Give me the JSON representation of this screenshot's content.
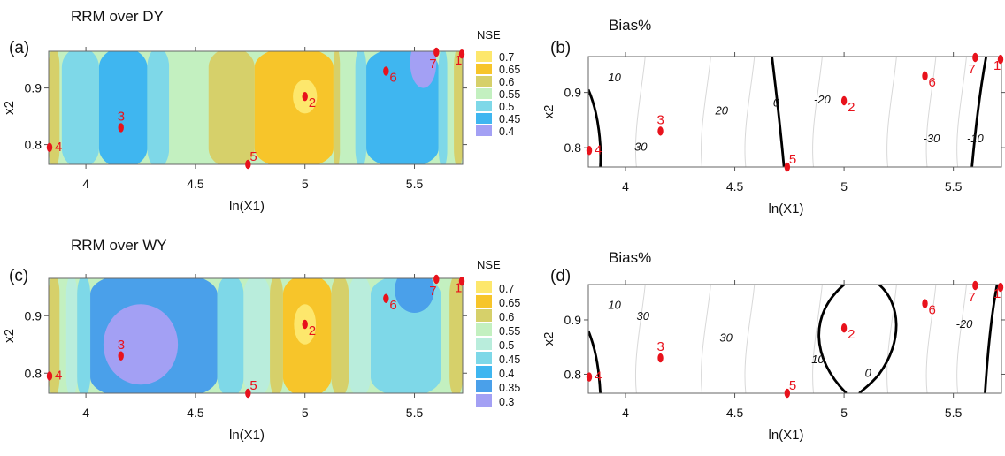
{
  "chart_data": [
    {
      "id": "a",
      "panel_label": "(a)",
      "title": "RRM over DY",
      "type": "contour",
      "metric": "NSE",
      "xlabel": "ln(X1)",
      "ylabel": "x2",
      "xlim": [
        3.83,
        5.72
      ],
      "ylim": [
        0.765,
        0.965
      ],
      "xticks": [
        "4",
        "4.5",
        "5",
        "5.5"
      ],
      "yticks": [
        "0.8",
        "0.9"
      ],
      "colorbar": {
        "title": "NSE",
        "levels": [
          "0.7",
          "0.65",
          "0.6",
          "0.55",
          "0.5",
          "0.45",
          "0.4"
        ],
        "colors": [
          "#fde76c",
          "#f7c52a",
          "#d6d06a",
          "#c3f0c0",
          "#7ed8e8",
          "#3fb6f0",
          "#a3a0f4"
        ]
      },
      "bands": [
        {
          "x0": 3.83,
          "x1": 3.88,
          "nse": 0.6
        },
        {
          "x0": 3.88,
          "x1": 3.89,
          "nse": 0.55
        },
        {
          "x0": 3.89,
          "x1": 4.06,
          "nse": 0.5
        },
        {
          "x0": 4.06,
          "x1": 4.28,
          "nse": 0.45
        },
        {
          "x0": 4.28,
          "x1": 4.38,
          "nse": 0.5
        },
        {
          "x0": 4.38,
          "x1": 4.56,
          "nse": 0.55
        },
        {
          "x0": 4.56,
          "x1": 4.77,
          "nse": 0.6
        },
        {
          "x0": 4.77,
          "x1": 5.13,
          "nse": 0.65
        },
        {
          "x0": 5.13,
          "x1": 5.16,
          "nse": 0.6
        },
        {
          "x0": 5.16,
          "x1": 5.23,
          "nse": 0.55
        },
        {
          "x0": 5.23,
          "x1": 5.28,
          "nse": 0.5
        },
        {
          "x0": 5.28,
          "x1": 5.61,
          "nse": 0.45
        },
        {
          "x0": 5.61,
          "x1": 5.65,
          "nse": 0.5
        },
        {
          "x0": 5.65,
          "x1": 5.68,
          "nse": 0.55
        },
        {
          "x0": 5.68,
          "x1": 5.72,
          "nse": 0.6
        }
      ],
      "blobs": [
        {
          "cx": 5.0,
          "cy": 0.885,
          "rx": 0.055,
          "ry": 0.03,
          "nse": 0.7
        },
        {
          "cx": 5.54,
          "cy": 0.945,
          "rx": 0.06,
          "ry": 0.045,
          "nse": 0.4
        }
      ],
      "points": [
        {
          "label": "1",
          "x": 5.72,
          "y": 0.96
        },
        {
          "label": "2",
          "x": 5.0,
          "y": 0.885
        },
        {
          "label": "3",
          "x": 4.16,
          "y": 0.83
        },
        {
          "label": "4",
          "x": 3.83,
          "y": 0.795
        },
        {
          "label": "5",
          "x": 4.74,
          "y": 0.765
        },
        {
          "label": "6",
          "x": 5.37,
          "y": 0.93
        },
        {
          "label": "7",
          "x": 5.6,
          "y": 0.97
        }
      ]
    },
    {
      "id": "b",
      "panel_label": "(b)",
      "title": "Bias%",
      "type": "contour",
      "metric": "Bias%",
      "xlabel": "ln(X1)",
      "ylabel": "x2",
      "xlim": [
        3.83,
        5.72
      ],
      "ylim": [
        0.765,
        0.965
      ],
      "xticks": [
        "4",
        "4.5",
        "5",
        "5.5"
      ],
      "yticks": [
        "0.8",
        "0.9"
      ],
      "contour_labels": [
        {
          "text": "10",
          "x": 3.95,
          "y": 0.92
        },
        {
          "text": "30",
          "x": 4.07,
          "y": 0.795
        },
        {
          "text": "20",
          "x": 4.44,
          "y": 0.86
        },
        {
          "text": "0",
          "x": 4.69,
          "y": 0.875
        },
        {
          "text": "-20",
          "x": 4.9,
          "y": 0.88
        },
        {
          "text": "-30",
          "x": 5.4,
          "y": 0.81
        },
        {
          "text": "-10",
          "x": 5.6,
          "y": 0.81
        }
      ],
      "points": [
        {
          "label": "1",
          "x": 5.72,
          "y": 0.96
        },
        {
          "label": "2",
          "x": 5.0,
          "y": 0.885
        },
        {
          "label": "3",
          "x": 4.16,
          "y": 0.83
        },
        {
          "label": "4",
          "x": 3.83,
          "y": 0.795
        },
        {
          "label": "5",
          "x": 4.74,
          "y": 0.765
        },
        {
          "label": "6",
          "x": 5.37,
          "y": 0.93
        },
        {
          "label": "7",
          "x": 5.6,
          "y": 0.97
        }
      ]
    },
    {
      "id": "c",
      "panel_label": "(c)",
      "title": "RRM over WY",
      "type": "contour",
      "metric": "NSE",
      "xlabel": "ln(X1)",
      "ylabel": "x2",
      "xlim": [
        3.83,
        5.72
      ],
      "ylim": [
        0.765,
        0.965
      ],
      "xticks": [
        "4",
        "4.5",
        "5",
        "5.5"
      ],
      "yticks": [
        "0.8",
        "0.9"
      ],
      "colorbar": {
        "title": "NSE",
        "levels": [
          "0.7",
          "0.65",
          "0.6",
          "0.55",
          "0.5",
          "0.45",
          "0.4",
          "0.35",
          "0.3"
        ],
        "colors": [
          "#fde76c",
          "#f7c52a",
          "#d6d06a",
          "#c3f0c0",
          "#b9eddc",
          "#7ed8e8",
          "#3fb6f0",
          "#4aa0ea",
          "#a3a0f4"
        ]
      },
      "bands": [
        {
          "x0": 3.83,
          "x1": 3.88,
          "nse": 0.6
        },
        {
          "x0": 3.88,
          "x1": 3.91,
          "nse": 0.55
        },
        {
          "x0": 3.91,
          "x1": 3.96,
          "nse": 0.5
        },
        {
          "x0": 3.96,
          "x1": 4.02,
          "nse": 0.45
        },
        {
          "x0": 4.02,
          "x1": 4.6,
          "nse": 0.35
        },
        {
          "x0": 4.6,
          "x1": 4.72,
          "nse": 0.45
        },
        {
          "x0": 4.72,
          "x1": 4.84,
          "nse": 0.5
        },
        {
          "x0": 4.84,
          "x1": 4.9,
          "nse": 0.6
        },
        {
          "x0": 4.9,
          "x1": 5.12,
          "nse": 0.65
        },
        {
          "x0": 5.12,
          "x1": 5.2,
          "nse": 0.6
        },
        {
          "x0": 5.2,
          "x1": 5.3,
          "nse": 0.5
        },
        {
          "x0": 5.3,
          "x1": 5.62,
          "nse": 0.45
        },
        {
          "x0": 5.62,
          "x1": 5.66,
          "nse": 0.55
        },
        {
          "x0": 5.66,
          "x1": 5.72,
          "nse": 0.6
        }
      ],
      "blobs": [
        {
          "cx": 4.25,
          "cy": 0.85,
          "rx": 0.17,
          "ry": 0.07,
          "nse": 0.3
        },
        {
          "cx": 5.0,
          "cy": 0.885,
          "rx": 0.05,
          "ry": 0.035,
          "nse": 0.7
        },
        {
          "cx": 5.5,
          "cy": 0.945,
          "rx": 0.09,
          "ry": 0.04,
          "nse": 0.35
        }
      ],
      "points": [
        {
          "label": "1",
          "x": 5.72,
          "y": 0.96
        },
        {
          "label": "2",
          "x": 5.0,
          "y": 0.885
        },
        {
          "label": "3",
          "x": 4.16,
          "y": 0.83
        },
        {
          "label": "4",
          "x": 3.83,
          "y": 0.795
        },
        {
          "label": "5",
          "x": 4.74,
          "y": 0.765
        },
        {
          "label": "6",
          "x": 5.37,
          "y": 0.93
        },
        {
          "label": "7",
          "x": 5.6,
          "y": 0.97
        }
      ]
    },
    {
      "id": "d",
      "panel_label": "(d)",
      "title": "Bias%",
      "type": "contour",
      "metric": "Bias%",
      "xlabel": "ln(X1)",
      "ylabel": "x2",
      "xlim": [
        3.83,
        5.72
      ],
      "ylim": [
        0.765,
        0.965
      ],
      "xticks": [
        "4",
        "4.5",
        "5",
        "5.5"
      ],
      "yticks": [
        "0.8",
        "0.9"
      ],
      "contour_labels": [
        {
          "text": "10",
          "x": 3.95,
          "y": 0.92
        },
        {
          "text": "30",
          "x": 4.08,
          "y": 0.9
        },
        {
          "text": "30",
          "x": 4.46,
          "y": 0.86
        },
        {
          "text": "10",
          "x": 4.88,
          "y": 0.82
        },
        {
          "text": "0",
          "x": 5.11,
          "y": 0.795
        },
        {
          "text": "-20",
          "x": 5.55,
          "y": 0.885
        }
      ],
      "points": [
        {
          "label": "1",
          "x": 5.72,
          "y": 0.96
        },
        {
          "label": "2",
          "x": 5.0,
          "y": 0.885
        },
        {
          "label": "3",
          "x": 4.16,
          "y": 0.83
        },
        {
          "label": "4",
          "x": 3.83,
          "y": 0.795
        },
        {
          "label": "5",
          "x": 4.74,
          "y": 0.765
        },
        {
          "label": "6",
          "x": 5.37,
          "y": 0.93
        },
        {
          "label": "7",
          "x": 5.6,
          "y": 0.97
        }
      ]
    }
  ]
}
